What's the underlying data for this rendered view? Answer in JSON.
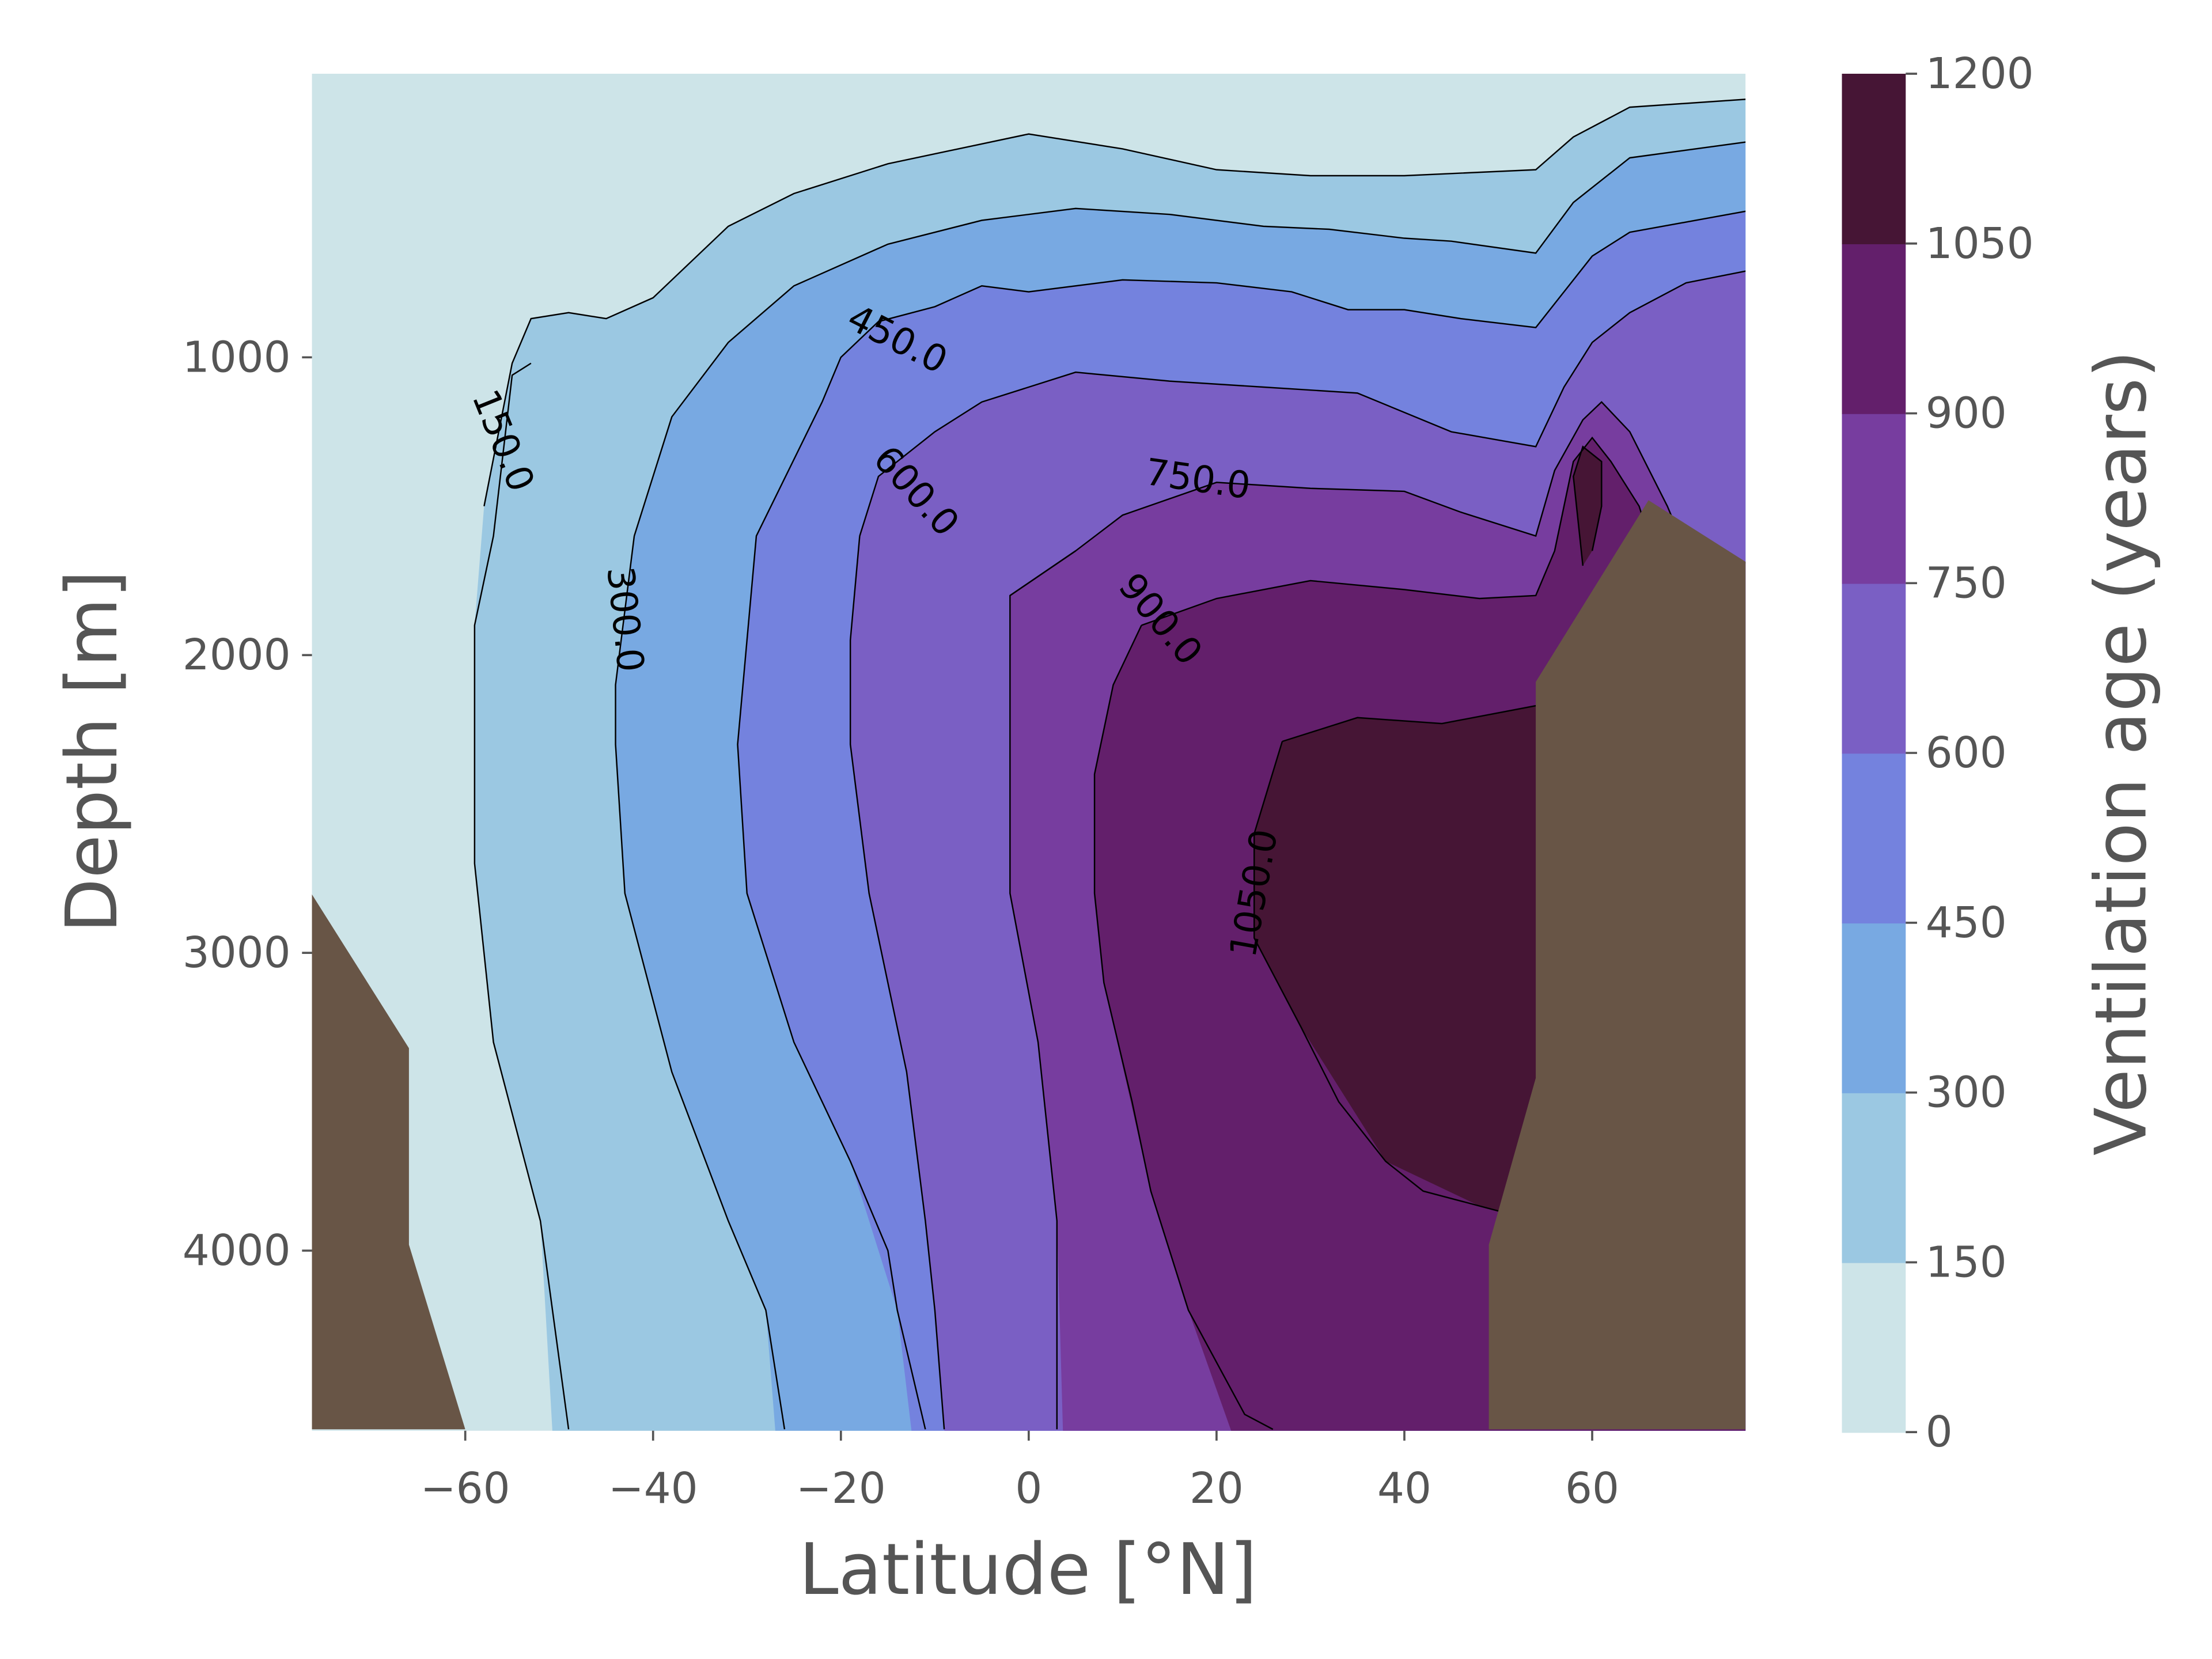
{
  "chart_data": {
    "type": "contourf",
    "xlabel": "Latitude [°N]",
    "ylabel": "Depth [m]",
    "xlim": [
      -77,
      77
    ],
    "ylim_depth_inverted": [
      50,
      4600
    ],
    "x_ticks": [
      -60,
      -40,
      -20,
      0,
      20,
      40,
      60
    ],
    "x_tick_labels": [
      "−60",
      "−40",
      "−20",
      "0",
      "20",
      "40",
      "60"
    ],
    "y_ticks": [
      1000,
      2000,
      3000,
      4000
    ],
    "y_tick_labels": [
      "1000",
      "2000",
      "3000",
      "4000"
    ],
    "colorbar": {
      "label": "Ventilation age (years)",
      "levels": [
        0,
        150,
        300,
        450,
        600,
        750,
        900,
        1050,
        1200
      ],
      "tick_labels": [
        "0",
        "150",
        "300",
        "450",
        "600",
        "750",
        "900",
        "1050",
        "1200"
      ],
      "colors": [
        "#cde4e8",
        "#9bc8e2",
        "#78a9e2",
        "#7482de",
        "#7a5fc4",
        "#773d9f",
        "#631f6b",
        "#461535"
      ]
    },
    "land_color": "#685546",
    "contour_labels": [
      {
        "text": "150.0",
        "lat": -56,
        "depth": 1280
      },
      {
        "text": "300.0",
        "lat": -43,
        "depth": 1880
      },
      {
        "text": "450.0",
        "lat": -14,
        "depth": 940
      },
      {
        "text": "600.0",
        "lat": -12,
        "depth": 1450
      },
      {
        "text": "750.0",
        "lat": 18,
        "depth": 1410
      },
      {
        "text": "900.0",
        "lat": 14,
        "depth": 1880
      },
      {
        "text": "1050.0",
        "lat": 24,
        "depth": 2800
      }
    ],
    "contours": [
      {
        "level": 150,
        "points": [
          [
            -53,
            1020
          ],
          [
            -55,
            1060
          ],
          [
            -57,
            1600
          ],
          [
            -59,
            1900
          ],
          [
            -59,
            2700
          ],
          [
            -57,
            3300
          ],
          [
            -52,
            3900
          ],
          [
            -49,
            4600
          ]
        ]
      },
      {
        "level": 300,
        "points": [
          [
            -42,
            1600
          ],
          [
            -44,
            2100
          ],
          [
            -44,
            2300
          ],
          [
            -43,
            2800
          ],
          [
            -38,
            3400
          ],
          [
            -32,
            3900
          ],
          [
            -28,
            4200
          ],
          [
            -26,
            4600
          ]
        ]
      },
      {
        "level": 450,
        "points": [
          [
            -22,
            1150
          ],
          [
            -29,
            1600
          ],
          [
            -31,
            2300
          ],
          [
            -30,
            2800
          ],
          [
            -25,
            3300
          ],
          [
            -19,
            3700
          ],
          [
            -15,
            4000
          ],
          [
            -14,
            4200
          ],
          [
            -11,
            4600
          ]
        ]
      },
      {
        "level": 600,
        "points": [
          [
            -18,
            1600
          ],
          [
            -19,
            1950
          ],
          [
            -19,
            2300
          ],
          [
            -17,
            2800
          ],
          [
            -13,
            3400
          ],
          [
            -11,
            3900
          ],
          [
            -10,
            4200
          ],
          [
            -9,
            4600
          ]
        ]
      },
      {
        "level": 750,
        "points": [
          [
            5,
            1650
          ],
          [
            -2,
            1800
          ],
          [
            -2,
            2100
          ],
          [
            -2,
            2800
          ],
          [
            1,
            3300
          ],
          [
            3,
            3900
          ],
          [
            3,
            4600
          ]
        ]
      },
      {
        "level": 900,
        "points": [
          [
            12,
            1900
          ],
          [
            9,
            2100
          ],
          [
            7,
            2400
          ],
          [
            7,
            2800
          ],
          [
            8,
            3100
          ],
          [
            11,
            3500
          ],
          [
            13,
            3800
          ],
          [
            14,
            3900
          ],
          [
            17,
            4200
          ],
          [
            23,
            4550
          ],
          [
            26,
            4600
          ]
        ]
      },
      {
        "level": 1050,
        "points": [
          [
            27,
            2290
          ],
          [
            24,
            2600
          ],
          [
            24,
            2950
          ],
          [
            29,
            3250
          ],
          [
            33,
            3500
          ],
          [
            38,
            3700
          ],
          [
            42,
            3800
          ],
          [
            48,
            3850
          ],
          [
            54,
            3900
          ]
        ]
      }
    ]
  }
}
